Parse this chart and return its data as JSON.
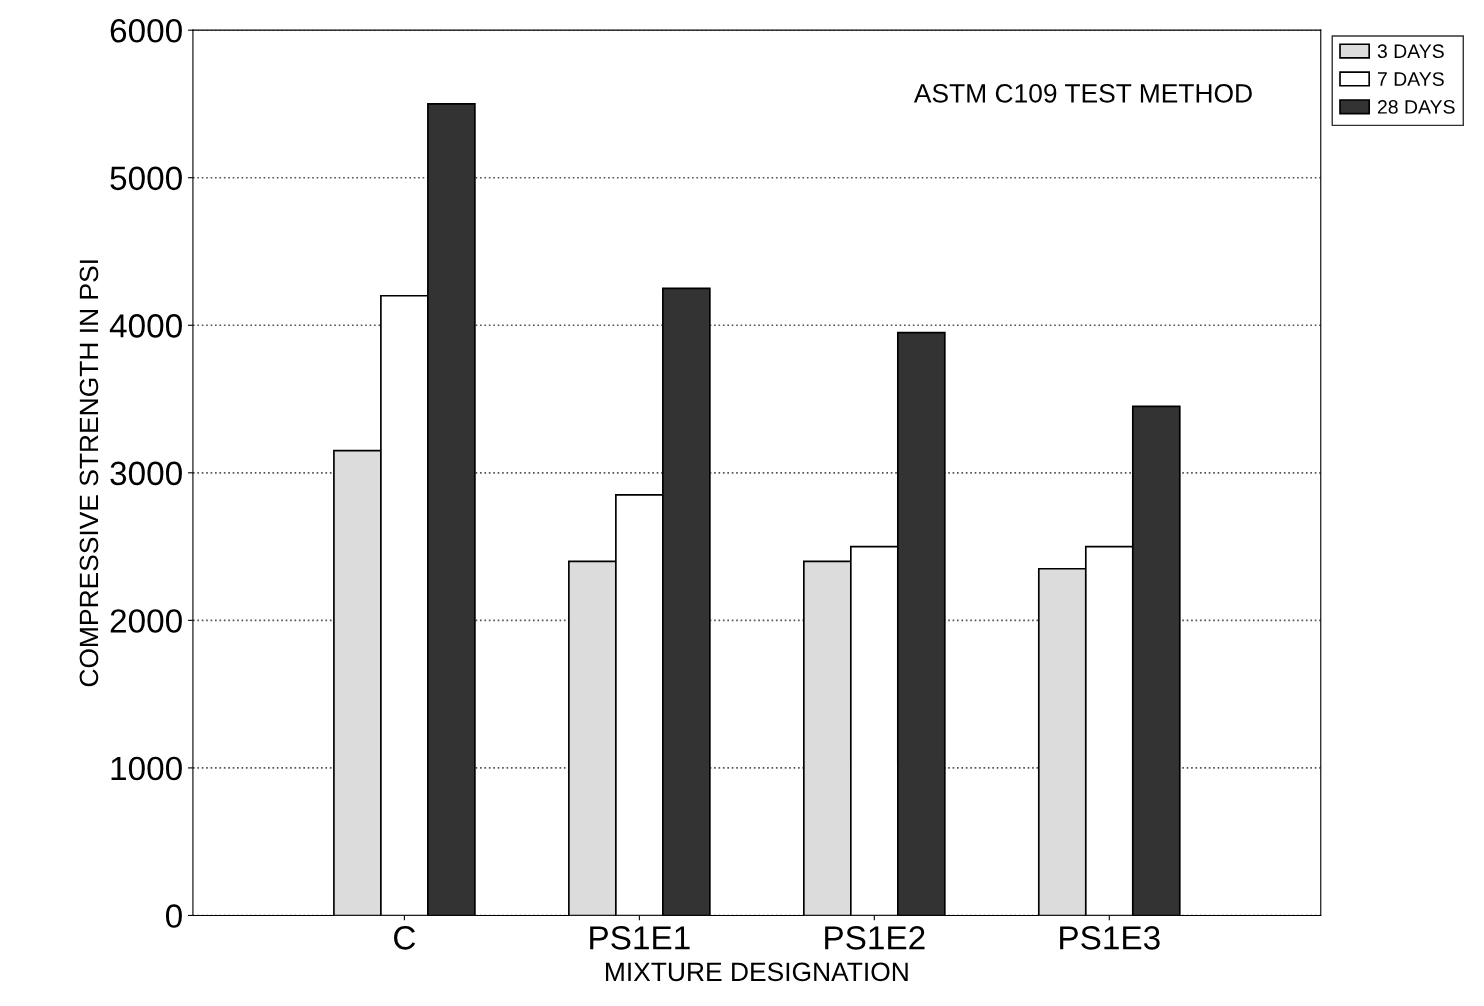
{
  "chart_data": {
    "type": "bar",
    "xlabel": "MIXTURE DESIGNATION",
    "ylabel": "COMPRESSIVE STRENGTH IN PSI",
    "categories": [
      "C",
      "PS1E1",
      "PS1E2",
      "PS1E3"
    ],
    "series": [
      {
        "name": "3 DAYS",
        "color": "#dcdcdc",
        "values": [
          3150,
          2400,
          2400,
          2350
        ]
      },
      {
        "name": "7 DAYS",
        "color": "#ffffff",
        "values": [
          4200,
          2850,
          2500,
          2500
        ]
      },
      {
        "name": "28 DAYS",
        "color": "#333333",
        "values": [
          5500,
          4250,
          3950,
          3450
        ]
      }
    ],
    "ylim": [
      0,
      6000
    ],
    "yticks": [
      0,
      1000,
      2000,
      3000,
      4000,
      5000,
      6000
    ],
    "grid": "y",
    "legend": "top right",
    "annotations": [
      "ASTM C109 TEST METHOD"
    ]
  }
}
